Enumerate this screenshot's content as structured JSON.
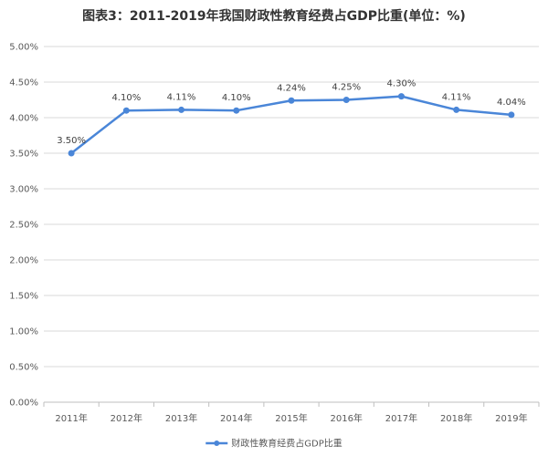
{
  "chart_data": {
    "type": "line",
    "title": "图表3：2011-2019年我国财政性教育经费占GDP比重(单位：%)",
    "categories": [
      "2011年",
      "2012年",
      "2013年",
      "2014年",
      "2015年",
      "2016年",
      "2017年",
      "2018年",
      "2019年"
    ],
    "series": [
      {
        "name": "财政性教育经费占GDP比重",
        "values": [
          3.5,
          4.1,
          4.11,
          4.1,
          4.24,
          4.25,
          4.3,
          4.11,
          4.04
        ],
        "labels": [
          "3.50%",
          "4.10%",
          "4.11%",
          "4.10%",
          "4.24%",
          "4.25%",
          "4.30%",
          "4.11%",
          "4.04%"
        ]
      }
    ],
    "ylim": [
      0,
      5
    ],
    "yticks": [
      0,
      0.5,
      1,
      1.5,
      2,
      2.5,
      3,
      3.5,
      4,
      4.5,
      5
    ],
    "ytick_labels": [
      "0.00%",
      "0.50%",
      "1.00%",
      "1.50%",
      "2.00%",
      "2.50%",
      "3.00%",
      "3.50%",
      "4.00%",
      "4.50%",
      "5.00%"
    ],
    "xlabel": "",
    "ylabel": "",
    "grid": true,
    "legend_position": "bottom-center",
    "colors": {
      "line": "#4a86d8",
      "grid": "#d9d9d9",
      "axis": "#bfbfbf",
      "text": "#595959"
    }
  }
}
